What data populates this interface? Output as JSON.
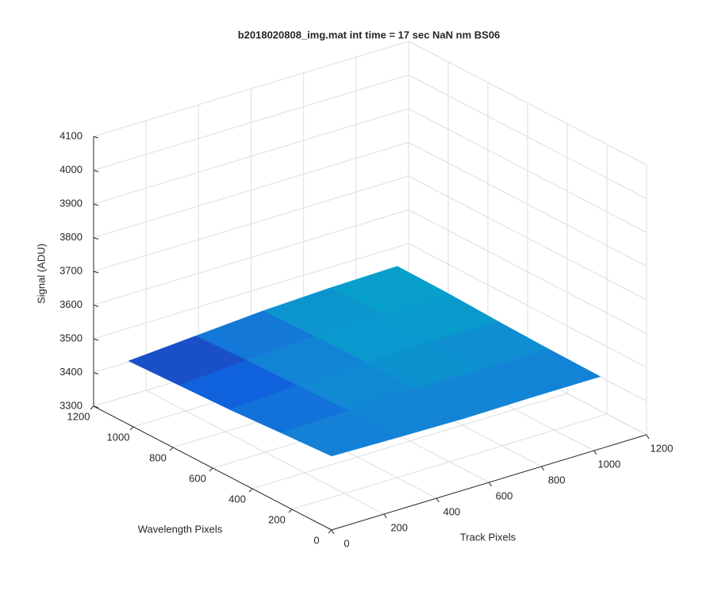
{
  "chart_data": {
    "type": "surface",
    "title": "b2018020808_img.mat int time = 17 sec  NaN nm BS06",
    "xlabel": "Track Pixels",
    "ylabel": "Wavelength Pixels",
    "zlabel": "Signal (ADU)",
    "xlim": [
      0,
      1200
    ],
    "ylim": [
      0,
      1200
    ],
    "zlim": [
      3300,
      4100
    ],
    "xticks": [
      0,
      200,
      400,
      600,
      800,
      1000,
      1200
    ],
    "yticks": [
      0,
      200,
      400,
      600,
      800,
      1000,
      1200
    ],
    "zticks": [
      3300,
      3400,
      3500,
      3600,
      3700,
      3800,
      3900,
      4000,
      4100
    ],
    "grid": true,
    "colormap": [
      "#352a87",
      "#0f5cdd",
      "#1481d6",
      "#06a4ca"
    ],
    "x": [
      0,
      256,
      512,
      768,
      1024
    ],
    "y": [
      0,
      256,
      512,
      768,
      1024
    ],
    "z": [
      [
        3519,
        3515,
        3512,
        3514,
        3514
      ],
      [
        3510,
        3515,
        3520,
        3518,
        3516
      ],
      [
        3500,
        3512,
        3522,
        3524,
        3520
      ],
      [
        3494,
        3508,
        3520,
        3528,
        3526
      ],
      [
        3488,
        3502,
        3516,
        3524,
        3528
      ]
    ]
  }
}
